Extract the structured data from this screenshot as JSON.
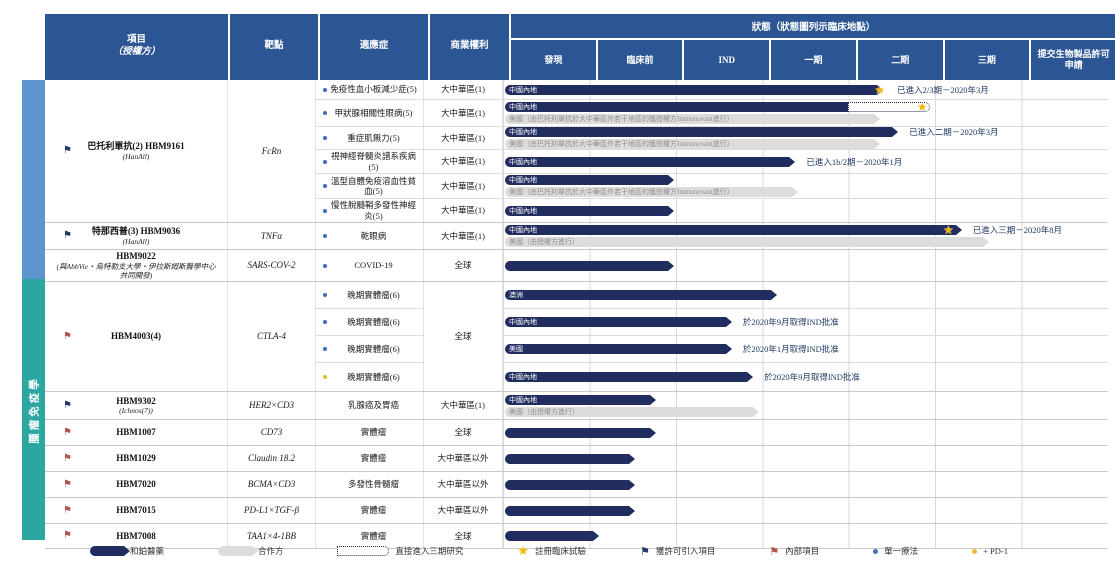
{
  "header": {
    "project_line1": "項目",
    "project_line2": "（授權方）",
    "target": "靶點",
    "indication": "適應症",
    "commercial": "商業權利",
    "status_group": "狀態（狀態圖列示臨床地點）",
    "phases": [
      "發現",
      "臨床前",
      "IND",
      "一期",
      "二期",
      "三期",
      "提交生物製品許可申請"
    ]
  },
  "colors": {
    "header_bg": "#2B5693",
    "sponsor_bar": "#222D5F",
    "partner_bar": "#DCDCDC",
    "section_band_top": "#5E95CF",
    "section_band_oncology": "#2CA6A0",
    "star": "#F5B700",
    "licensed_in_flag": "#1F3864",
    "internal_flag": "#B3544E",
    "mono_dot": "#3E6FB5",
    "pd1_dot": "#E9B93C"
  },
  "chart_data": {
    "type": "table",
    "title": "狀態（狀態圖列示臨床地點）",
    "phases": [
      "發現",
      "臨床前",
      "IND",
      "一期",
      "二期",
      "三期",
      "提交生物製品許可申請"
    ],
    "sections": [
      {
        "label": "",
        "color": "#5E95CF"
      },
      {
        "label": "腫瘤免疫學",
        "color": "#2CA6A0"
      }
    ],
    "groups": [
      {
        "section": 0,
        "name": "巴托利單抗(2) HBM9161",
        "licensor": "(HanAll)",
        "flag": "獲許可引入項目",
        "target": "FcRn",
        "rows": [
          {
            "indication": "免疫性血小板減少症(5)",
            "dot": "單一療法",
            "commercial": "大中華區(1)",
            "navy": {
              "label": "中國內地",
              "pct": 61.5
            },
            "note": {
              "text": "已進入2/3期－2020年3月",
              "x": 63.5
            }
          },
          {
            "indication": "甲狀腺相關性眼病(5)",
            "dot": "單一療法",
            "commercial": "大中華區(1)",
            "navy": {
              "label": "中國內地",
              "pct": 57
            },
            "dotted": {
              "x": 57,
              "w": 13.5
            },
            "gray": {
              "label": "美國（由巴托利單抗於大中華區外若干地區的獲授權方Immunovant進行）",
              "pct": 61
            }
          },
          {
            "indication": "重症肌無力(5)",
            "dot": "單一療法",
            "commercial": "大中華區(1)",
            "navy": {
              "label": "中國內地",
              "pct": 64
            },
            "gray": {
              "label": "美國（由巴托利單抗於大中華區外若干地區的獲授權方Immunovant進行）",
              "pct": 61
            },
            "note": {
              "text": "已進入二期－2020年3月",
              "x": 65.5
            }
          },
          {
            "indication": "視神經脊髓炎譜系疾病(5)",
            "dot": "單一療法",
            "commercial": "大中華區(1)",
            "navy": {
              "label": "中國內地",
              "pct": 47
            },
            "note": {
              "text": "已進入1b/2期－2020年1月",
              "x": 48.5
            }
          },
          {
            "indication": "溫型自體免疫溶血性貧血(5)",
            "dot": "單一療法",
            "commercial": "大中華區(1)",
            "navy": {
              "label": "中國內地",
              "pct": 27
            },
            "gray": {
              "label": "美國（由巴托利單抗於大中華區外若干地區的獲授權方Immunovant進行）",
              "pct": 47.5
            }
          },
          {
            "indication": "慢性脫髓鞘多發性神經炎(5)",
            "dot": "單一療法",
            "commercial": "大中華區(1)",
            "navy": {
              "label": "中國內地",
              "pct": 27
            }
          }
        ]
      },
      {
        "section": 0,
        "name": "特那西普(3) HBM9036",
        "licensor": "(HanAll)",
        "flag": "獲許可引入項目",
        "target": "TNFα",
        "rows": [
          {
            "indication": "乾眼病",
            "dot": "單一療法",
            "commercial": "大中華區(1)",
            "navy": {
              "label": "中國內地",
              "pct": 74.5
            },
            "gray": {
              "label": "美國（由授權方進行）",
              "pct": 79
            },
            "note": {
              "text": "已進入三期－2020年8月",
              "x": 76
            }
          }
        ]
      },
      {
        "section": 0,
        "name": "HBM9022",
        "licensor": "(與AbbVie・烏特勒支大學・伊拉斯姆斯醫學中心共同開發)",
        "flag": "",
        "target": "SARS-COV-2",
        "rows": [
          {
            "indication": "COVID-19",
            "dot": "單一療法",
            "commercial": "全球",
            "navy": {
              "label": "",
              "pct": 27
            }
          }
        ]
      },
      {
        "section": 1,
        "name": "HBM4003(4)",
        "licensor": "",
        "flag": "內部項目",
        "target": "CTLA-4",
        "commercial_span": "全球",
        "rows": [
          {
            "indication": "晚期實體瘤(6)",
            "dot": "單一療法",
            "navy": {
              "label": "澳洲",
              "pct": 44
            }
          },
          {
            "indication": "晚期實體瘤(6)",
            "dot": "單一療法",
            "navy": {
              "label": "中國內地",
              "pct": 36.5
            },
            "note": {
              "text": "於2020年9月取得IND批准",
              "x": 38
            }
          },
          {
            "indication": "晚期實體瘤(6)",
            "dot": "單一療法",
            "navy": {
              "label": "美國",
              "pct": 36.5
            },
            "note": {
              "text": "於2020年1月取得IND批准",
              "x": 38
            }
          },
          {
            "indication": "晚期實體瘤(6)",
            "dot": "+ PD-1",
            "navy": {
              "label": "中國內地",
              "pct": 40
            },
            "note": {
              "text": "於2020年9月取得IND批准",
              "x": 41.5
            }
          }
        ]
      },
      {
        "section": 1,
        "name": "HBM9302",
        "licensor": "(Ichnos(7))",
        "flag": "獲許可引入項目",
        "target": "HER2×CD3",
        "rows": [
          {
            "indication": "乳腺癌及胃癌",
            "dot": "",
            "commercial": "大中華區(1)",
            "navy": {
              "label": "中國內地",
              "pct": 24
            },
            "gray": {
              "label": "美國（由授權方進行）",
              "pct": 41
            }
          }
        ]
      },
      {
        "section": 1,
        "name": "HBM1007",
        "licensor": "",
        "flag": "內部項目",
        "target": "CD73",
        "rows": [
          {
            "indication": "實體瘤",
            "dot": "",
            "commercial": "全球",
            "navy": {
              "label": "",
              "pct": 24
            }
          }
        ]
      },
      {
        "section": 1,
        "name": "HBM1029",
        "licensor": "",
        "flag": "內部項目",
        "target": "Claudin 18.2",
        "rows": [
          {
            "indication": "實體瘤",
            "dot": "",
            "commercial": "大中華區以外",
            "navy": {
              "label": "",
              "pct": 20.5
            }
          }
        ]
      },
      {
        "section": 1,
        "name": "HBM7020",
        "licensor": "",
        "flag": "內部項目",
        "target": "BCMA×CD3",
        "rows": [
          {
            "indication": "多發性骨髓瘤",
            "dot": "",
            "commercial": "大中華區以外",
            "navy": {
              "label": "",
              "pct": 20.5
            }
          }
        ]
      },
      {
        "section": 1,
        "name": "HBM7015",
        "licensor": "",
        "flag": "內部項目",
        "target": "PD-L1×TGF-β",
        "rows": [
          {
            "indication": "實體瘤",
            "dot": "",
            "commercial": "大中華區以外",
            "navy": {
              "label": "",
              "pct": 20.5
            }
          }
        ]
      },
      {
        "section": 1,
        "name": "HBM7008",
        "licensor": "",
        "flag": "內部項目",
        "target": "TAA1×4-1BB",
        "rows": [
          {
            "indication": "實體瘤",
            "dot": "",
            "commercial": "全球",
            "navy": {
              "label": "",
              "pct": 14.5
            }
          }
        ]
      }
    ]
  },
  "legend": {
    "sponsor": "和鉑醫藥",
    "partner": "合作方",
    "direct_phase3": "直接進入三期研究",
    "registrational": "註冊臨床試驗",
    "licensed_in": "獲許可引入項目",
    "internal": "內部項目",
    "monotherapy": "單一療法",
    "pd1": "+ PD-1"
  }
}
